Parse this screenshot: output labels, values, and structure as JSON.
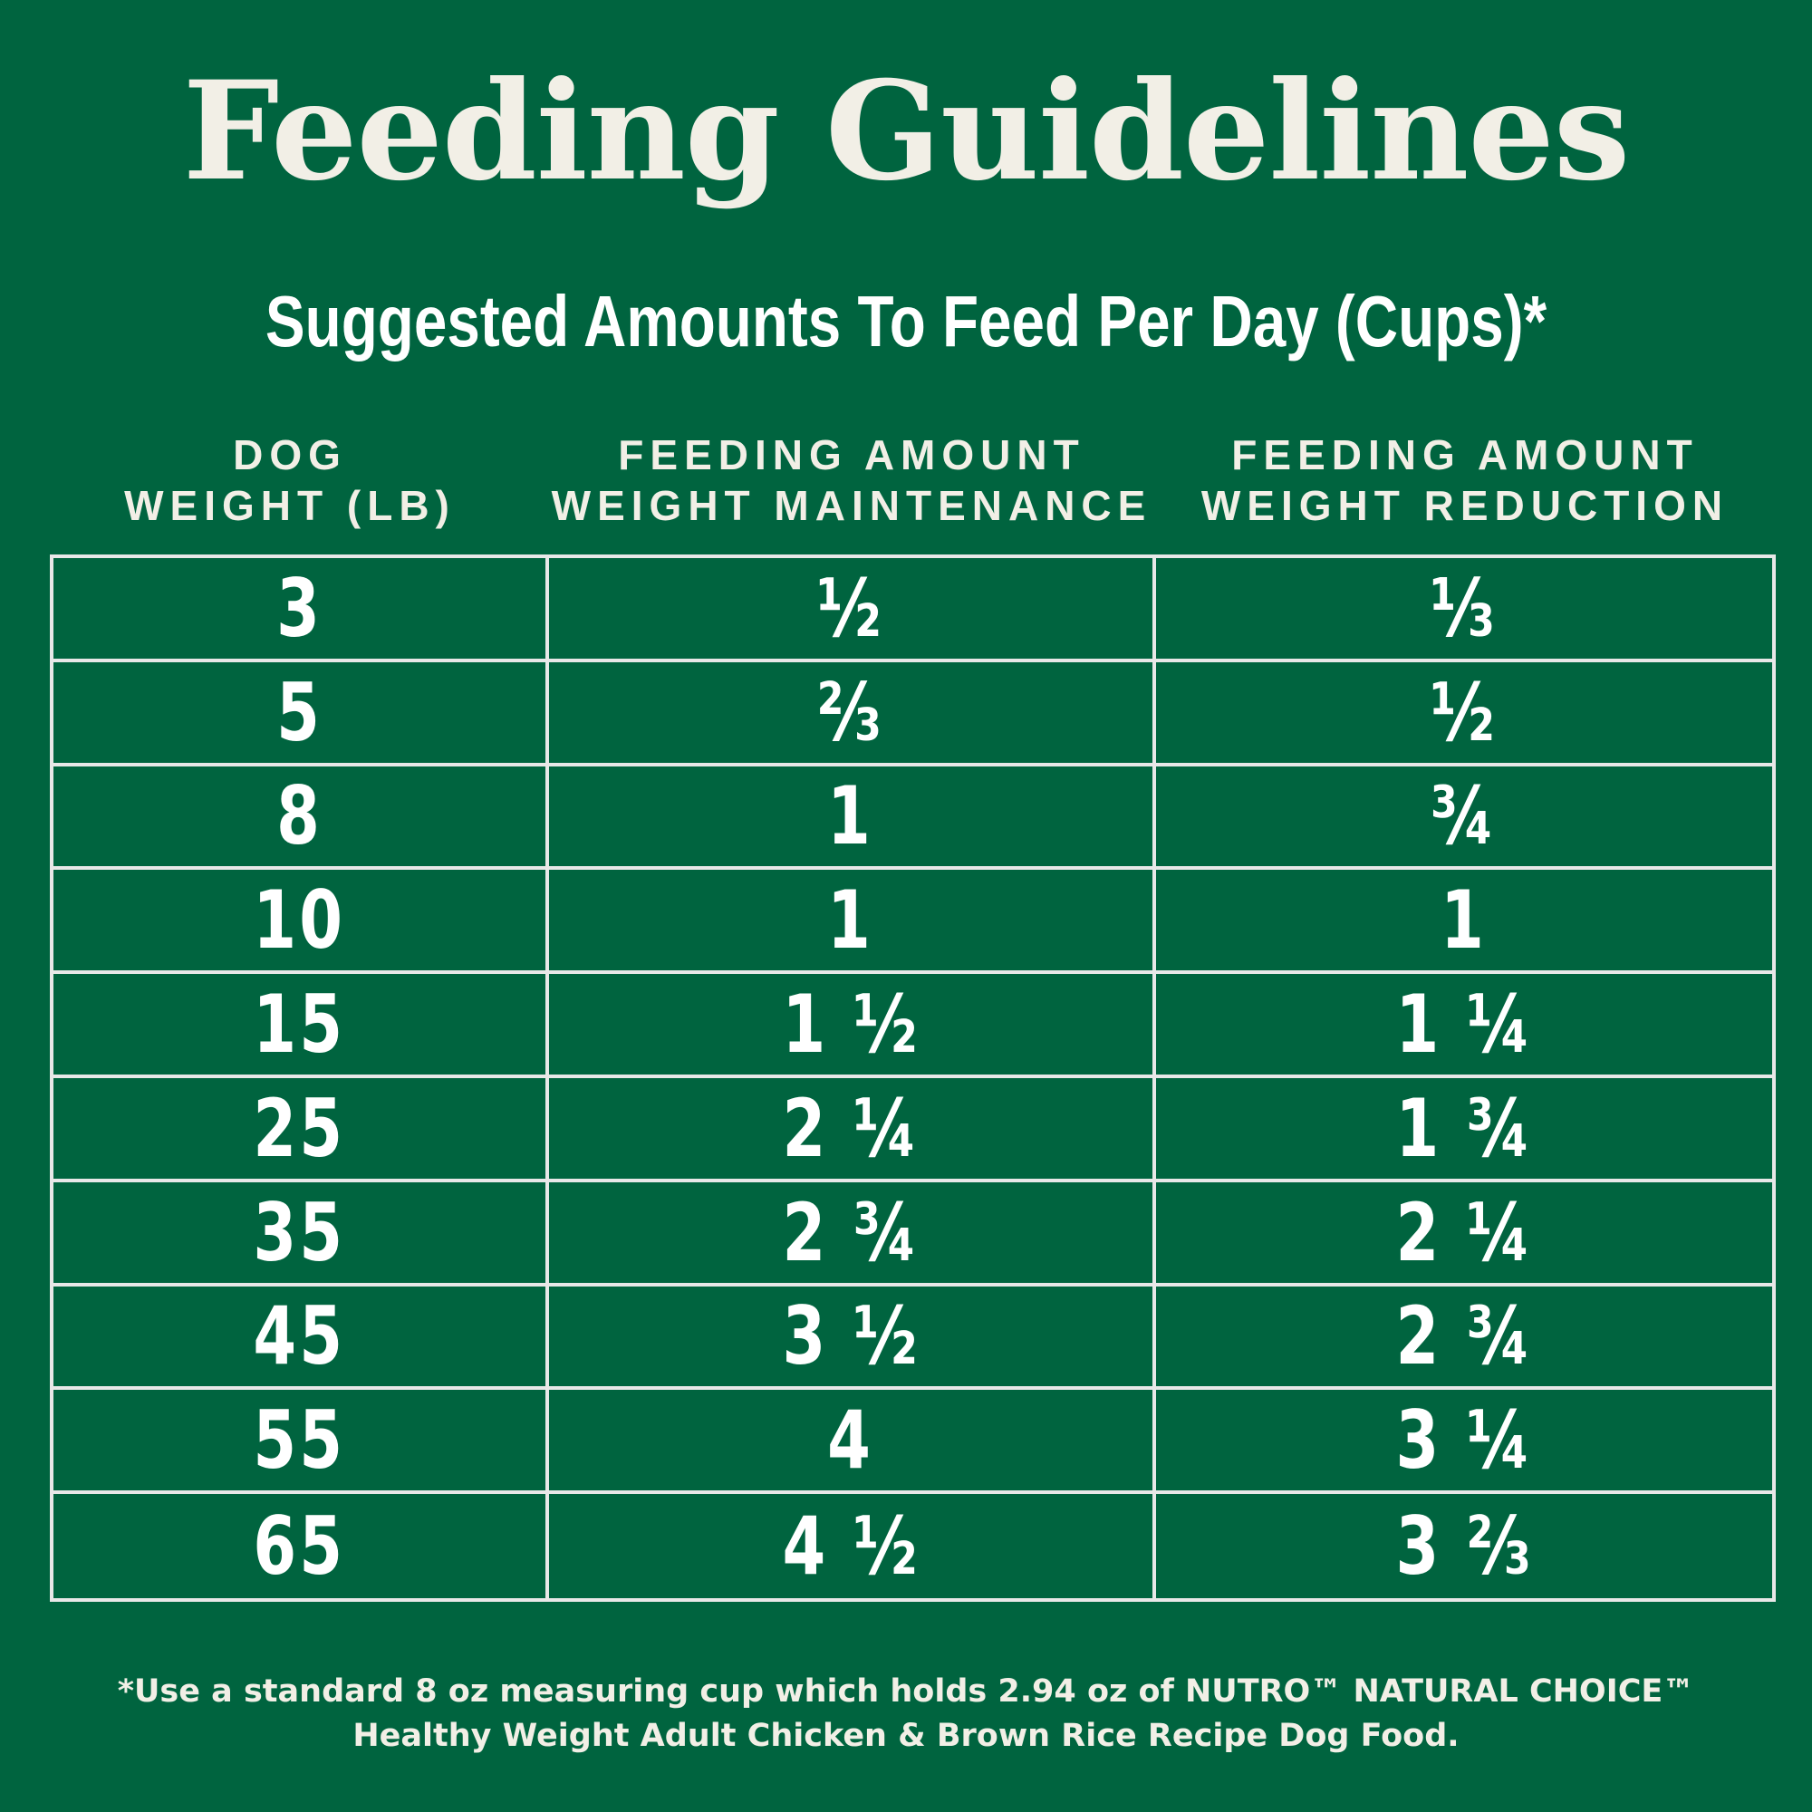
{
  "colors": {
    "background": "#00643f",
    "text": "#ffffff",
    "cream": "#f2efe6",
    "grid": "#e8e8e8"
  },
  "title": "Feeding Guidelines",
  "subtitle": "Suggested Amounts To Feed Per Day (Cups)*",
  "columns": [
    {
      "line1": "DOG",
      "line2": "WEIGHT (LB)"
    },
    {
      "line1": "FEEDING AMOUNT",
      "line2": "WEIGHT MAINTENANCE"
    },
    {
      "line1": "FEEDING AMOUNT",
      "line2": "WEIGHT REDUCTION"
    }
  ],
  "rows": [
    [
      "3",
      "½",
      "⅓"
    ],
    [
      "5",
      "⅔",
      "½"
    ],
    [
      "8",
      "1",
      "¾"
    ],
    [
      "10",
      "1",
      "1"
    ],
    [
      "15",
      "1 ½",
      "1 ¼"
    ],
    [
      "25",
      "2 ¼",
      "1 ¾"
    ],
    [
      "35",
      "2 ¾",
      "2 ¼"
    ],
    [
      "45",
      "3 ½",
      "2 ¾"
    ],
    [
      "55",
      "4",
      "3 ¼"
    ],
    [
      "65",
      "4 ½",
      "3 ⅔"
    ]
  ],
  "footnote": {
    "line1": "*Use a standard 8 oz measuring cup which holds 2.94 oz of NUTRO™ NATURAL CHOICE™",
    "line2": "Healthy Weight Adult Chicken & Brown Rice Recipe Dog Food."
  }
}
